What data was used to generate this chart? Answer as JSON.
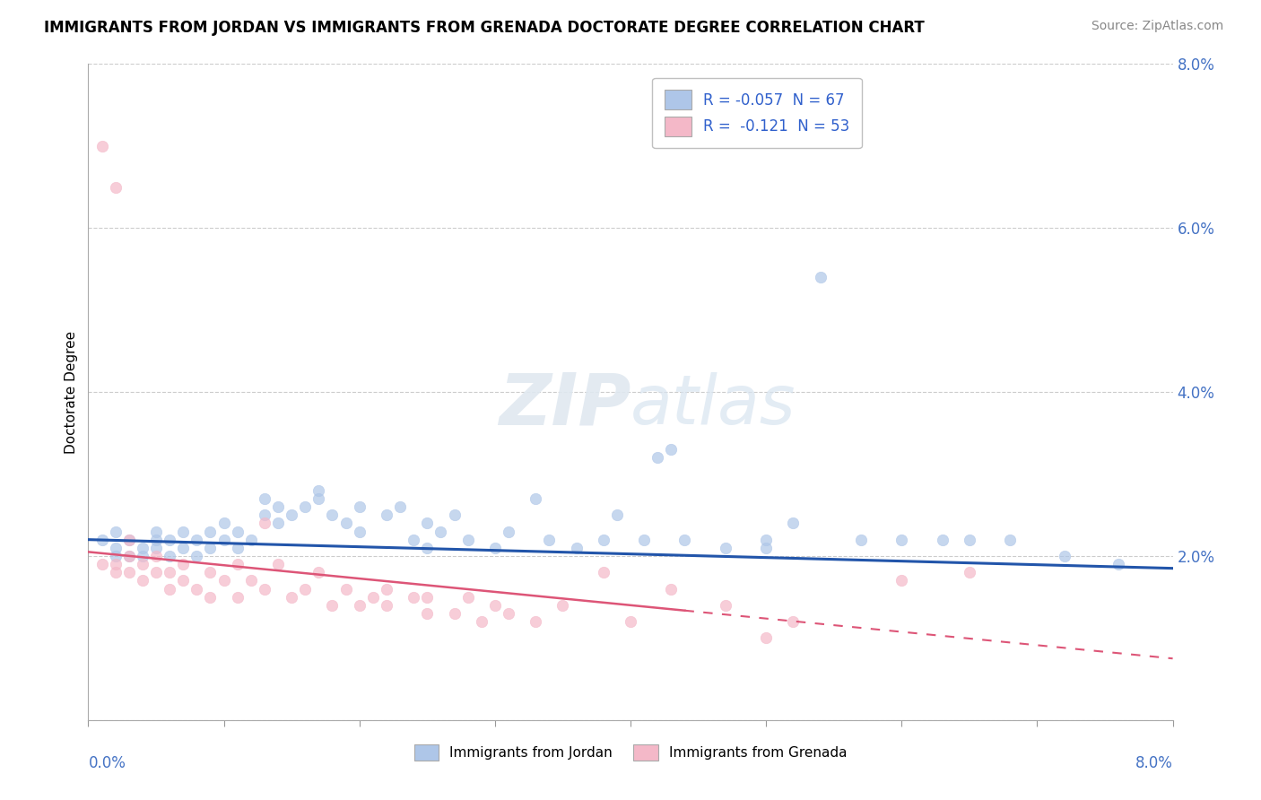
{
  "title": "IMMIGRANTS FROM JORDAN VS IMMIGRANTS FROM GRENADA DOCTORATE DEGREE CORRELATION CHART",
  "source": "Source: ZipAtlas.com",
  "ylabel": "Doctorate Degree",
  "xmin": 0.0,
  "xmax": 0.08,
  "ymin": 0.0,
  "ymax": 0.08,
  "yticks": [
    0.0,
    0.02,
    0.04,
    0.06,
    0.08
  ],
  "ytick_labels": [
    "",
    "2.0%",
    "4.0%",
    "6.0%",
    "8.0%"
  ],
  "jordan_color": "#aec6e8",
  "grenada_color": "#f4b8c8",
  "jordan_line_color": "#2255aa",
  "grenada_line_color": "#dd5577",
  "jordan_R": -0.057,
  "jordan_N": 67,
  "grenada_R": -0.121,
  "grenada_N": 53,
  "jordan_scatter": [
    [
      0.001,
      0.022
    ],
    [
      0.002,
      0.021
    ],
    [
      0.002,
      0.02
    ],
    [
      0.002,
      0.023
    ],
    [
      0.003,
      0.02
    ],
    [
      0.003,
      0.022
    ],
    [
      0.004,
      0.02
    ],
    [
      0.004,
      0.021
    ],
    [
      0.005,
      0.021
    ],
    [
      0.005,
      0.022
    ],
    [
      0.005,
      0.023
    ],
    [
      0.006,
      0.02
    ],
    [
      0.006,
      0.022
    ],
    [
      0.007,
      0.021
    ],
    [
      0.007,
      0.023
    ],
    [
      0.008,
      0.02
    ],
    [
      0.008,
      0.022
    ],
    [
      0.009,
      0.021
    ],
    [
      0.009,
      0.023
    ],
    [
      0.01,
      0.022
    ],
    [
      0.01,
      0.024
    ],
    [
      0.011,
      0.021
    ],
    [
      0.011,
      0.023
    ],
    [
      0.012,
      0.022
    ],
    [
      0.013,
      0.025
    ],
    [
      0.013,
      0.027
    ],
    [
      0.014,
      0.024
    ],
    [
      0.014,
      0.026
    ],
    [
      0.015,
      0.025
    ],
    [
      0.016,
      0.026
    ],
    [
      0.017,
      0.027
    ],
    [
      0.017,
      0.028
    ],
    [
      0.018,
      0.025
    ],
    [
      0.019,
      0.024
    ],
    [
      0.02,
      0.026
    ],
    [
      0.02,
      0.023
    ],
    [
      0.022,
      0.025
    ],
    [
      0.023,
      0.026
    ],
    [
      0.024,
      0.022
    ],
    [
      0.025,
      0.024
    ],
    [
      0.025,
      0.021
    ],
    [
      0.026,
      0.023
    ],
    [
      0.027,
      0.025
    ],
    [
      0.028,
      0.022
    ],
    [
      0.03,
      0.021
    ],
    [
      0.031,
      0.023
    ],
    [
      0.033,
      0.027
    ],
    [
      0.034,
      0.022
    ],
    [
      0.036,
      0.021
    ],
    [
      0.038,
      0.022
    ],
    [
      0.039,
      0.025
    ],
    [
      0.041,
      0.022
    ],
    [
      0.042,
      0.032
    ],
    [
      0.043,
      0.033
    ],
    [
      0.044,
      0.022
    ],
    [
      0.047,
      0.021
    ],
    [
      0.05,
      0.021
    ],
    [
      0.05,
      0.022
    ],
    [
      0.052,
      0.024
    ],
    [
      0.054,
      0.054
    ],
    [
      0.057,
      0.022
    ],
    [
      0.06,
      0.022
    ],
    [
      0.063,
      0.022
    ],
    [
      0.065,
      0.022
    ],
    [
      0.068,
      0.022
    ],
    [
      0.072,
      0.02
    ],
    [
      0.076,
      0.019
    ]
  ],
  "grenada_scatter": [
    [
      0.001,
      0.07
    ],
    [
      0.002,
      0.065
    ],
    [
      0.003,
      0.022
    ],
    [
      0.001,
      0.019
    ],
    [
      0.002,
      0.018
    ],
    [
      0.002,
      0.019
    ],
    [
      0.003,
      0.018
    ],
    [
      0.003,
      0.02
    ],
    [
      0.004,
      0.017
    ],
    [
      0.004,
      0.019
    ],
    [
      0.005,
      0.018
    ],
    [
      0.005,
      0.02
    ],
    [
      0.006,
      0.016
    ],
    [
      0.006,
      0.018
    ],
    [
      0.007,
      0.017
    ],
    [
      0.007,
      0.019
    ],
    [
      0.008,
      0.016
    ],
    [
      0.009,
      0.018
    ],
    [
      0.009,
      0.015
    ],
    [
      0.01,
      0.017
    ],
    [
      0.011,
      0.019
    ],
    [
      0.011,
      0.015
    ],
    [
      0.012,
      0.017
    ],
    [
      0.013,
      0.016
    ],
    [
      0.013,
      0.024
    ],
    [
      0.014,
      0.019
    ],
    [
      0.015,
      0.015
    ],
    [
      0.016,
      0.016
    ],
    [
      0.017,
      0.018
    ],
    [
      0.018,
      0.014
    ],
    [
      0.019,
      0.016
    ],
    [
      0.02,
      0.014
    ],
    [
      0.021,
      0.015
    ],
    [
      0.022,
      0.016
    ],
    [
      0.022,
      0.014
    ],
    [
      0.024,
      0.015
    ],
    [
      0.025,
      0.013
    ],
    [
      0.025,
      0.015
    ],
    [
      0.027,
      0.013
    ],
    [
      0.028,
      0.015
    ],
    [
      0.029,
      0.012
    ],
    [
      0.03,
      0.014
    ],
    [
      0.031,
      0.013
    ],
    [
      0.033,
      0.012
    ],
    [
      0.035,
      0.014
    ],
    [
      0.038,
      0.018
    ],
    [
      0.04,
      0.012
    ],
    [
      0.043,
      0.016
    ],
    [
      0.047,
      0.014
    ],
    [
      0.05,
      0.01
    ],
    [
      0.052,
      0.012
    ],
    [
      0.06,
      0.017
    ],
    [
      0.065,
      0.018
    ]
  ]
}
